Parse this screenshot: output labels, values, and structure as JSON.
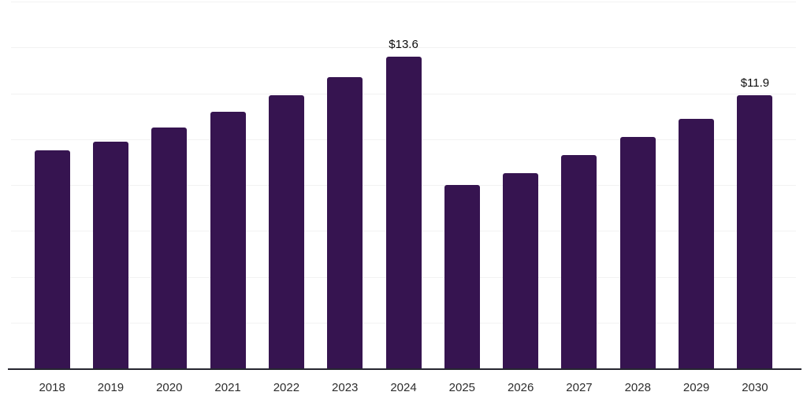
{
  "chart_data": {
    "type": "bar",
    "title": "",
    "xlabel": "",
    "ylabel": "",
    "categories": [
      "2018",
      "2019",
      "2020",
      "2021",
      "2022",
      "2023",
      "2024",
      "2025",
      "2026",
      "2027",
      "2028",
      "2029",
      "2030"
    ],
    "values": [
      9.5,
      9.9,
      10.5,
      11.2,
      11.9,
      12.7,
      13.6,
      8.0,
      8.5,
      9.3,
      10.1,
      10.9,
      11.9
    ],
    "data_labels": [
      null,
      null,
      null,
      null,
      null,
      null,
      "$13.6",
      null,
      null,
      null,
      null,
      null,
      "$11.9"
    ],
    "ylim": [
      0,
      16
    ],
    "gridline_step": 2,
    "grid": true,
    "legend_position": "none",
    "colors": {
      "bar": "#361450",
      "axis": "#262630",
      "gridline": "#f2f2f2",
      "tick_label": "#2d2d2d",
      "value_label": "#0d0d0d",
      "background": "#ffffff"
    }
  }
}
